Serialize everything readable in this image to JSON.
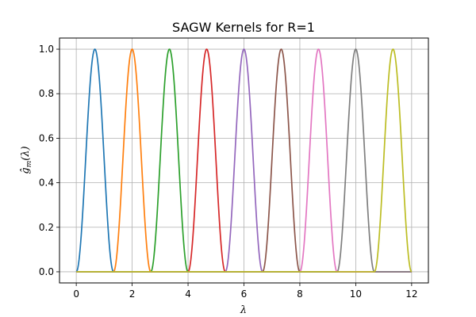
{
  "chart_data": {
    "type": "line",
    "title": "SAGW Kernels for R=1",
    "xlabel": "λ",
    "ylabel": "ĝ",
    "ylabel_sub": "m",
    "ylabel_arg": "(λ)",
    "xlim": [
      -0.6,
      12.6
    ],
    "ylim": [
      -0.05,
      1.05
    ],
    "xticks": [
      0,
      2,
      4,
      6,
      8,
      10,
      12
    ],
    "yticks": [
      0.0,
      0.2,
      0.4,
      0.6,
      0.8,
      1.0
    ],
    "ytick_labels": [
      "0.0",
      "0.2",
      "0.4",
      "0.6",
      "0.8",
      "1.0"
    ],
    "grid": true,
    "x_domain": [
      0,
      12
    ],
    "series": [
      {
        "start": 0.0,
        "end": 1.3333,
        "peak": 0.6667,
        "color": "#1f77b4"
      },
      {
        "start": 1.3333,
        "end": 2.6667,
        "peak": 2.0,
        "color": "#ff7f0e"
      },
      {
        "start": 2.6667,
        "end": 4.0,
        "peak": 3.3333,
        "color": "#2ca02c"
      },
      {
        "start": 4.0,
        "end": 5.3333,
        "peak": 4.6667,
        "color": "#d62728"
      },
      {
        "start": 5.3333,
        "end": 6.6667,
        "peak": 6.0,
        "color": "#9467bd"
      },
      {
        "start": 6.6667,
        "end": 8.0,
        "peak": 7.3333,
        "color": "#8c564b"
      },
      {
        "start": 8.0,
        "end": 9.3333,
        "peak": 8.6667,
        "color": "#e377c2"
      },
      {
        "start": 9.3333,
        "end": 10.6667,
        "peak": 10.0,
        "color": "#7f7f7f"
      },
      {
        "start": 10.6667,
        "end": 12.0,
        "peak": 11.3333,
        "color": "#bcbd22"
      }
    ]
  }
}
